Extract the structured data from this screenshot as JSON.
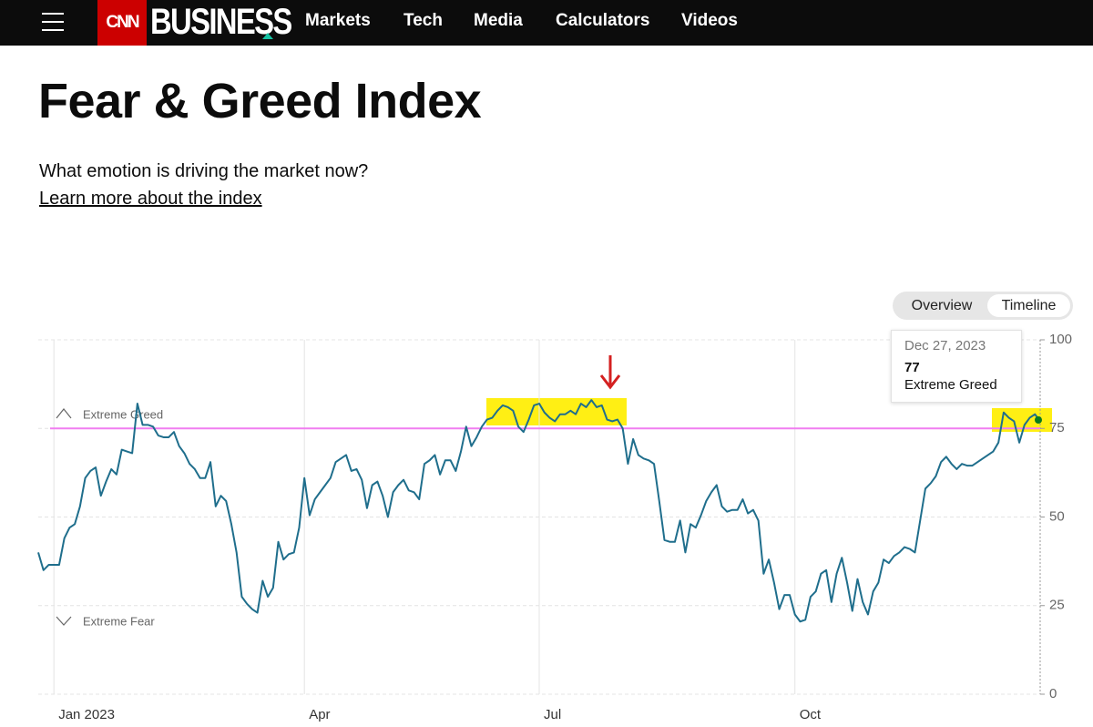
{
  "nav": {
    "logo": "CNN",
    "brand": "BUSINESS",
    "links": [
      "Markets",
      "Tech",
      "Media",
      "Calculators",
      "Videos"
    ]
  },
  "header": {
    "title": "Fear & Greed Index",
    "subtitle": "What emotion is driving the market now?",
    "link": "Learn more about the index"
  },
  "tabs": [
    "Overview",
    "Timeline"
  ],
  "chart_data": {
    "type": "line",
    "color": "#1f6e8c",
    "values": [
      40,
      35,
      36.5,
      36.5,
      36.5,
      44,
      47,
      48,
      53,
      61,
      63,
      64,
      56,
      60,
      63.5,
      62,
      69,
      68.5,
      68,
      82,
      76,
      76,
      75.5,
      73,
      72.5,
      72.5,
      74,
      70,
      68,
      65,
      63.5,
      61,
      61,
      65.5,
      53,
      56,
      54.5,
      48,
      40,
      27.5,
      25.5,
      24,
      23,
      32,
      27.5,
      30,
      43,
      38,
      39.5,
      40,
      47,
      61,
      50.5,
      55,
      57,
      59,
      61,
      65.5,
      66.5,
      67.5,
      63,
      63.5,
      60.5,
      52.5,
      59,
      60,
      56,
      50,
      57,
      59,
      60.5,
      57.5,
      57,
      55,
      65,
      66,
      67.5,
      62,
      66,
      66,
      63,
      68.5,
      75.5,
      70,
      72.5,
      75.5,
      77.5,
      78,
      80,
      81.5,
      81,
      80,
      75.5,
      74,
      77.5,
      81.5,
      82,
      79.5,
      78,
      77,
      79,
      79,
      80,
      79,
      82,
      81,
      83,
      81,
      81.5,
      77.5,
      77,
      77.5,
      75,
      65,
      72,
      67.5,
      66.5,
      66,
      65,
      54.5,
      43.5,
      43,
      43,
      49,
      40,
      48,
      47,
      50.5,
      54.5,
      57,
      59,
      53,
      51.5,
      52,
      52,
      55,
      51,
      52,
      49,
      34,
      38,
      31.5,
      24,
      28,
      28,
      22.5,
      20.5,
      21,
      27.5,
      29,
      34,
      35,
      26,
      34,
      38.5,
      31.5,
      23.5,
      32.5,
      26,
      22.5,
      29,
      31.5,
      38,
      37,
      39,
      40,
      41.5,
      41,
      40,
      49,
      58,
      59.5,
      61.5,
      65.5,
      67,
      65,
      63.5,
      65,
      64.5,
      64.5,
      65.5,
      66.5,
      67.5,
      68.5,
      71,
      79.5,
      78,
      77,
      71,
      76,
      78,
      79,
      77
    ],
    "xlim": [
      0,
      192
    ],
    "xticks": [
      {
        "value": 3,
        "label": "Jan 2023"
      },
      {
        "value": 51,
        "label": "Apr"
      },
      {
        "value": 96,
        "label": "Jul"
      },
      {
        "value": 145,
        "label": "Oct"
      }
    ],
    "ylim": [
      0,
      100
    ],
    "yticks": [
      0,
      25,
      50,
      75,
      100
    ],
    "grid": true,
    "reference_line": {
      "value": 75,
      "color": "#f07ef0"
    },
    "annotations": [
      "Extreme Greed",
      "Extreme Fear"
    ],
    "tooltip": {
      "date": "Dec 27, 2023",
      "label": "Extreme Greed"
    }
  }
}
